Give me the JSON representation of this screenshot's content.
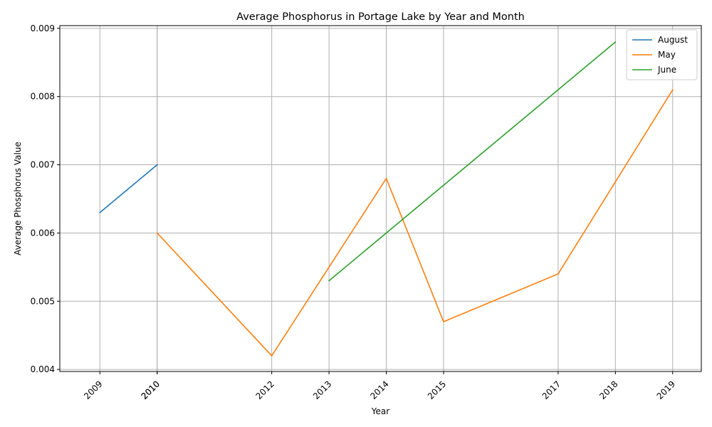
{
  "chart_data": {
    "type": "line",
    "title": "Average Phosphorus in Portage Lake by Year and Month",
    "xlabel": "Year",
    "ylabel": "Average Phosphorus Value",
    "xlim": [
      2008.3,
      2019.5
    ],
    "ylim": [
      0.00397,
      0.00904
    ],
    "x_ticks": [
      "2009",
      "2010",
      "2010",
      "2012",
      "2013",
      "2014",
      "2015",
      "2017",
      "2018",
      "2019"
    ],
    "x_tick_values": [
      2009,
      2010,
      2010,
      2012,
      2013,
      2014,
      2015,
      2017,
      2018,
      2019
    ],
    "y_ticks": [
      "0.004",
      "0.005",
      "0.006",
      "0.007",
      "0.008",
      "0.009"
    ],
    "y_tick_values": [
      0.004,
      0.005,
      0.006,
      0.007,
      0.008,
      0.009
    ],
    "grid": true,
    "legend_position": "top-right",
    "series": [
      {
        "name": "August",
        "color": "#1f77b4",
        "x": [
          2009,
          2010
        ],
        "y": [
          0.0063,
          0.007
        ]
      },
      {
        "name": "May",
        "color": "#ff7f0e",
        "x": [
          2010,
          2012,
          2014,
          2015,
          2017,
          2019
        ],
        "y": [
          0.006,
          0.0042,
          0.0068,
          0.0047,
          0.0054,
          0.0081
        ]
      },
      {
        "name": "June",
        "color": "#2ca02c",
        "x": [
          2013,
          2018
        ],
        "y": [
          0.0053,
          0.0088
        ]
      }
    ]
  }
}
